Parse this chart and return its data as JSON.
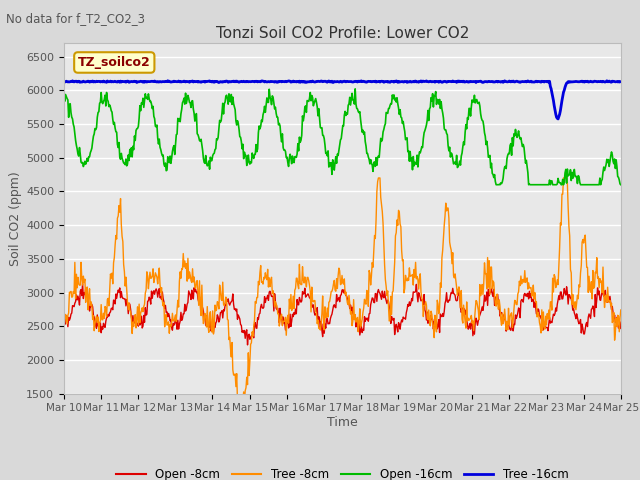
{
  "title": "Tonzi Soil CO2 Profile: Lower CO2",
  "subtitle": "No data for f_T2_CO2_3",
  "xlabel": "Time",
  "ylabel": "Soil CO2 (ppm)",
  "ylim": [
    1500,
    6700
  ],
  "yticks": [
    1500,
    2000,
    2500,
    3000,
    3500,
    4000,
    4500,
    5000,
    5500,
    6000,
    6500
  ],
  "xtick_labels": [
    "Mar 10",
    "Mar 11",
    "Mar 12",
    "Mar 13",
    "Mar 14",
    "Mar 15",
    "Mar 16",
    "Mar 17",
    "Mar 18",
    "Mar 19",
    "Mar 20",
    "Mar 21",
    "Mar 22",
    "Mar 23",
    "Mar 24",
    "Mar 25"
  ],
  "fig_bg_color": "#d9d9d9",
  "plot_bg_color": "#e8e8e8",
  "legend_label": "TZ_soilco2",
  "colors": {
    "open_8cm": "#dd0000",
    "tree_8cm": "#ff8c00",
    "open_16cm": "#00bb00",
    "tree_16cm": "#0000dd"
  },
  "legend_entries": [
    "Open -8cm",
    "Tree -8cm",
    "Open -16cm",
    "Tree -16cm"
  ],
  "n_days": 15,
  "n_per_day": 48
}
